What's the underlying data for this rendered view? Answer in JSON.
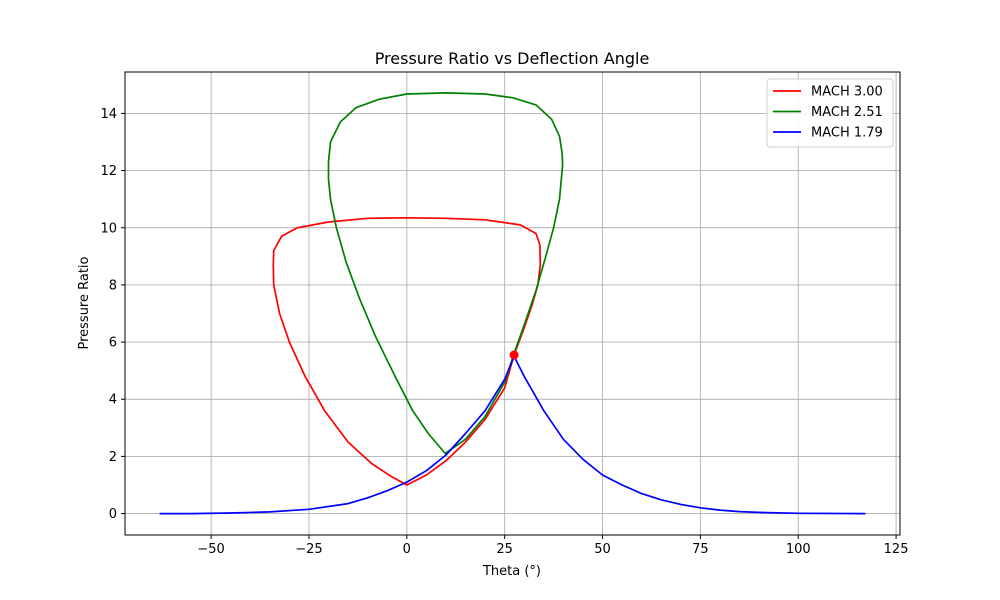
{
  "chart_data": {
    "type": "line",
    "title": "Pressure Ratio vs Deflection Angle",
    "xlabel": "Theta (°)",
    "ylabel": "Pressure Ratio",
    "xlim": [
      -72,
      126
    ],
    "ylim": [
      -0.75,
      15.45
    ],
    "xticks": [
      -50,
      -25,
      0,
      25,
      50,
      75,
      100,
      125
    ],
    "xtick_labels": [
      "−50",
      "−25",
      "0",
      "25",
      "50",
      "75",
      "100",
      "125"
    ],
    "yticks": [
      0,
      2,
      4,
      6,
      8,
      10,
      12,
      14
    ],
    "ytick_labels": [
      "0",
      "2",
      "4",
      "6",
      "8",
      "10",
      "12",
      "14"
    ],
    "grid": true,
    "legend_position": "top-right",
    "series": [
      {
        "name": "MACH 3.00",
        "color": "#ff0000",
        "points": [
          [
            0.0,
            1.0
          ],
          [
            5.0,
            1.35
          ],
          [
            10.0,
            1.85
          ],
          [
            15.0,
            2.5
          ],
          [
            20.0,
            3.3
          ],
          [
            25.0,
            4.4
          ],
          [
            27.4,
            5.55
          ],
          [
            30.0,
            6.5
          ],
          [
            32.0,
            7.3
          ],
          [
            33.5,
            8.0
          ],
          [
            34.1,
            8.7
          ],
          [
            34.0,
            9.4
          ],
          [
            33.0,
            9.8
          ],
          [
            29.0,
            10.1
          ],
          [
            20.0,
            10.28
          ],
          [
            10.0,
            10.33
          ],
          [
            0.0,
            10.35
          ],
          [
            -10.0,
            10.33
          ],
          [
            -20.0,
            10.2
          ],
          [
            -28.0,
            10.0
          ],
          [
            -32.0,
            9.7
          ],
          [
            -34.0,
            9.2
          ],
          [
            -34.1,
            8.7
          ],
          [
            -34.0,
            8.0
          ],
          [
            -32.5,
            7.0
          ],
          [
            -30.0,
            6.0
          ],
          [
            -26.0,
            4.8
          ],
          [
            -21.0,
            3.6
          ],
          [
            -15.0,
            2.5
          ],
          [
            -9.0,
            1.75
          ],
          [
            -4.0,
            1.3
          ],
          [
            0.0,
            1.0
          ]
        ]
      },
      {
        "name": "MACH 2.51",
        "color": "#008000",
        "points": [
          [
            9.8,
            2.1
          ],
          [
            15.0,
            2.6
          ],
          [
            20.0,
            3.4
          ],
          [
            25.0,
            4.6
          ],
          [
            27.4,
            5.6
          ],
          [
            30.0,
            6.6
          ],
          [
            33.0,
            7.8
          ],
          [
            35.5,
            9.0
          ],
          [
            37.5,
            10.0
          ],
          [
            39.0,
            11.0
          ],
          [
            39.8,
            12.2
          ],
          [
            39.7,
            12.6
          ],
          [
            39.0,
            13.2
          ],
          [
            37.0,
            13.8
          ],
          [
            33.0,
            14.3
          ],
          [
            27.0,
            14.55
          ],
          [
            20.0,
            14.68
          ],
          [
            10.0,
            14.72
          ],
          [
            0.0,
            14.68
          ],
          [
            -7.0,
            14.5
          ],
          [
            -13.0,
            14.2
          ],
          [
            -17.0,
            13.7
          ],
          [
            -19.5,
            13.0
          ],
          [
            -20.0,
            12.3
          ],
          [
            -20.0,
            11.7
          ],
          [
            -19.5,
            11.0
          ],
          [
            -18.0,
            10.0
          ],
          [
            -15.5,
            8.8
          ],
          [
            -12.0,
            7.5
          ],
          [
            -8.0,
            6.2
          ],
          [
            -3.0,
            4.8
          ],
          [
            1.5,
            3.6
          ],
          [
            5.5,
            2.8
          ],
          [
            9.8,
            2.1
          ]
        ]
      },
      {
        "name": "MACH 1.79",
        "color": "#0000ff",
        "points": [
          [
            -63.0,
            0.0
          ],
          [
            -55.0,
            0.0
          ],
          [
            -45.0,
            0.02
          ],
          [
            -35.0,
            0.06
          ],
          [
            -25.0,
            0.15
          ],
          [
            -15.0,
            0.35
          ],
          [
            -10.0,
            0.55
          ],
          [
            -5.0,
            0.8
          ],
          [
            0.0,
            1.1
          ],
          [
            5.0,
            1.5
          ],
          [
            10.0,
            2.05
          ],
          [
            15.0,
            2.8
          ],
          [
            20.0,
            3.6
          ],
          [
            25.0,
            4.7
          ],
          [
            27.4,
            5.5
          ],
          [
            30.0,
            4.8
          ],
          [
            35.0,
            3.6
          ],
          [
            40.0,
            2.6
          ],
          [
            45.0,
            1.9
          ],
          [
            50.0,
            1.35
          ],
          [
            55.0,
            1.0
          ],
          [
            60.0,
            0.7
          ],
          [
            65.0,
            0.48
          ],
          [
            70.0,
            0.32
          ],
          [
            75.0,
            0.2
          ],
          [
            80.0,
            0.12
          ],
          [
            85.0,
            0.07
          ],
          [
            90.0,
            0.04
          ],
          [
            100.0,
            0.01
          ],
          [
            117.0,
            0.0
          ]
        ]
      }
    ],
    "highlight_point": {
      "x": 27.4,
      "y": 5.55,
      "color": "#ff0000"
    }
  }
}
